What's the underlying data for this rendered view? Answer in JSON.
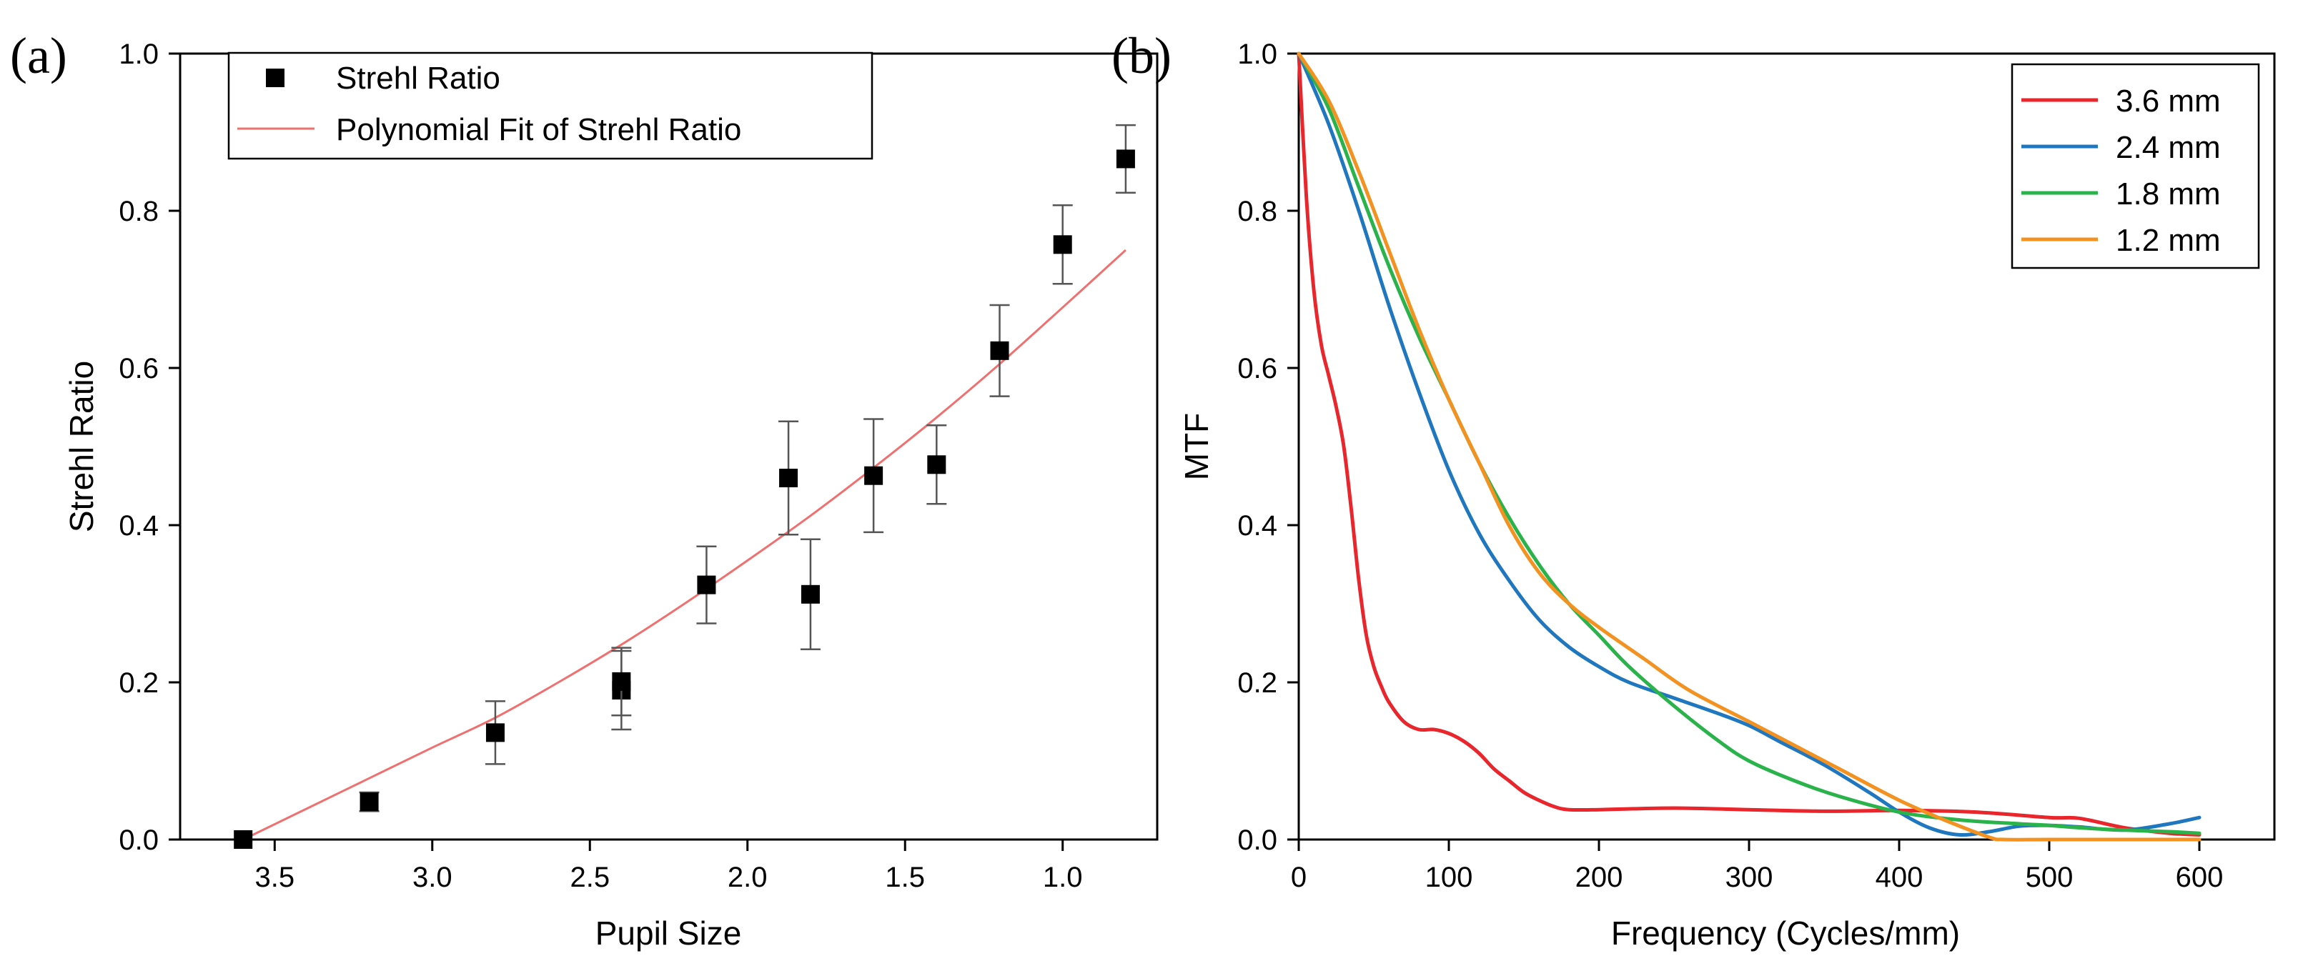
{
  "chart_data": [
    {
      "panel_label": "(a)",
      "type": "scatter",
      "xlabel": "Pupil Size",
      "ylabel": "Strehl Ratio",
      "xlim": [
        3.8,
        0.7
      ],
      "ylim": [
        0.0,
        1.0
      ],
      "x_ticks": [
        3.5,
        3.0,
        2.5,
        2.0,
        1.5,
        1.0
      ],
      "x_tick_labels": [
        "3.5",
        "3.0",
        "2.5",
        "2.0",
        "1.5",
        "1.0"
      ],
      "y_ticks": [
        0.0,
        0.2,
        0.4,
        0.6,
        0.8,
        1.0
      ],
      "y_tick_labels": [
        "0.0",
        "0.2",
        "0.4",
        "0.6",
        "0.8",
        "1.0"
      ],
      "legend_position": "top-left",
      "series": [
        {
          "name": "Strehl Ratio",
          "style": "square-markers-with-error-bars",
          "color": "#000000",
          "x": [
            3.6,
            3.2,
            2.8,
            2.4,
            2.4,
            2.13,
            1.87,
            1.8,
            1.6,
            1.4,
            1.2,
            1.0,
            0.8
          ],
          "y": [
            0.0,
            0.048,
            0.136,
            0.19,
            0.201,
            0.324,
            0.46,
            0.312,
            0.463,
            0.477,
            0.622,
            0.757,
            0.866
          ],
          "error": [
            0.0,
            0.012,
            0.04,
            0.05,
            0.043,
            0.049,
            0.072,
            0.07,
            0.072,
            0.05,
            0.058,
            0.05,
            0.043
          ]
        },
        {
          "name": "Polynomial Fit of Strehl Ratio",
          "style": "line",
          "color": "#f07070",
          "x": [
            3.6,
            3.4,
            3.2,
            3.0,
            2.8,
            2.6,
            2.4,
            2.2,
            2.0,
            1.8,
            1.6,
            1.4,
            1.2,
            1.0,
            0.8
          ],
          "y": [
            0.0,
            0.039,
            0.078,
            0.117,
            0.155,
            0.2,
            0.248,
            0.3,
            0.355,
            0.412,
            0.473,
            0.537,
            0.605,
            0.677,
            0.75
          ]
        }
      ]
    },
    {
      "panel_label": "(b)",
      "type": "line",
      "xlabel": "Frequency (Cycles/mm)",
      "ylabel": "MTF",
      "xlim": [
        0,
        650
      ],
      "ylim": [
        0.0,
        1.0
      ],
      "x_ticks": [
        0,
        100,
        200,
        300,
        400,
        500,
        600
      ],
      "x_tick_labels": [
        "0",
        "100",
        "200",
        "300",
        "400",
        "500",
        "600"
      ],
      "y_ticks": [
        0.0,
        0.2,
        0.4,
        0.6,
        0.8,
        1.0
      ],
      "y_tick_labels": [
        "0.0",
        "0.2",
        "0.4",
        "0.6",
        "0.8",
        "1.0"
      ],
      "legend_position": "top-right",
      "series": [
        {
          "name": "3.6 mm",
          "color": "#e8262c",
          "x": [
            0,
            5,
            10,
            15,
            20,
            25,
            30,
            35,
            40,
            45,
            50,
            55,
            60,
            70,
            80,
            90,
            100,
            110,
            120,
            130,
            140,
            150,
            160,
            170,
            180,
            200,
            250,
            300,
            350,
            400,
            450,
            500,
            520,
            550,
            580,
            600
          ],
          "y": [
            1.0,
            0.82,
            0.7,
            0.63,
            0.59,
            0.55,
            0.5,
            0.42,
            0.33,
            0.26,
            0.22,
            0.195,
            0.175,
            0.15,
            0.14,
            0.14,
            0.135,
            0.125,
            0.11,
            0.09,
            0.075,
            0.06,
            0.05,
            0.042,
            0.038,
            0.038,
            0.04,
            0.038,
            0.036,
            0.037,
            0.035,
            0.028,
            0.027,
            0.015,
            0.008,
            0.006
          ]
        },
        {
          "name": "2.4 mm",
          "color": "#1f77c0",
          "x": [
            0,
            20,
            40,
            60,
            80,
            100,
            120,
            140,
            160,
            180,
            200,
            220,
            250,
            280,
            300,
            320,
            350,
            380,
            400,
            420,
            440,
            460,
            480,
            500,
            520,
            550,
            580,
            600
          ],
          "y": [
            1.0,
            0.91,
            0.8,
            0.68,
            0.57,
            0.47,
            0.39,
            0.33,
            0.28,
            0.245,
            0.22,
            0.2,
            0.18,
            0.16,
            0.145,
            0.125,
            0.095,
            0.06,
            0.035,
            0.015,
            0.006,
            0.01,
            0.017,
            0.018,
            0.016,
            0.012,
            0.02,
            0.028
          ]
        },
        {
          "name": "1.8 mm",
          "color": "#2bb34b",
          "x": [
            0,
            20,
            40,
            60,
            80,
            100,
            120,
            140,
            160,
            180,
            200,
            220,
            250,
            280,
            300,
            330,
            360,
            400,
            440,
            480,
            500,
            520,
            550,
            580,
            600
          ],
          "y": [
            1.0,
            0.93,
            0.83,
            0.73,
            0.64,
            0.56,
            0.48,
            0.41,
            0.35,
            0.3,
            0.26,
            0.22,
            0.17,
            0.125,
            0.1,
            0.075,
            0.055,
            0.035,
            0.025,
            0.02,
            0.018,
            0.015,
            0.012,
            0.01,
            0.008
          ]
        },
        {
          "name": "1.2 mm",
          "color": "#f39220",
          "x": [
            0,
            20,
            40,
            60,
            80,
            100,
            120,
            140,
            160,
            180,
            200,
            230,
            260,
            300,
            330,
            360,
            400,
            430,
            460,
            470,
            500,
            550,
            600
          ],
          "y": [
            1.0,
            0.94,
            0.85,
            0.75,
            0.65,
            0.56,
            0.48,
            0.4,
            0.34,
            0.3,
            0.27,
            0.23,
            0.19,
            0.15,
            0.12,
            0.09,
            0.05,
            0.025,
            0.003,
            0.0,
            0.0,
            0.0,
            0.0
          ]
        }
      ]
    }
  ]
}
